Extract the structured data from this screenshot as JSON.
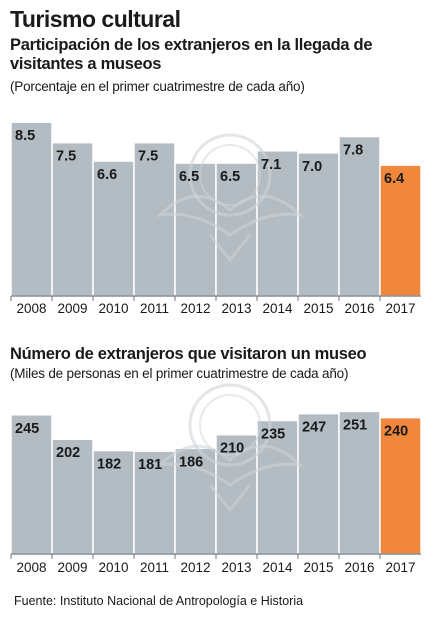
{
  "header": {
    "title": "Turismo cultural"
  },
  "footer": {
    "source": "Fuente: Instituto Nacional de Antropología e Historia"
  },
  "colors": {
    "bar": "#b3bcc3",
    "highlight": "#f0873d",
    "axis": "#6b7780",
    "divider": "#ffffff",
    "watermark": "#cfd5d9"
  },
  "chart_data": [
    {
      "type": "bar",
      "title": "Participación de los extranjeros en la llegada de visitantes a museos",
      "subtitle": "(Porcentaje en el primer cuatrimestre de cada año)",
      "categories": [
        "2008",
        "2009",
        "2010",
        "2011",
        "2012",
        "2013",
        "2014",
        "2015",
        "2016",
        "2017"
      ],
      "values": [
        8.5,
        7.5,
        6.6,
        7.5,
        6.5,
        6.5,
        7.1,
        7.0,
        7.8,
        6.4
      ],
      "value_labels": [
        "8.5",
        "7.5",
        "6.6",
        "7.5",
        "6.5",
        "6.5",
        "7.1",
        "7.0",
        "7.8",
        "6.4"
      ],
      "highlight_index": 9,
      "ylim": [
        0,
        8.9
      ],
      "grid": false,
      "xlabel": "",
      "ylabel": ""
    },
    {
      "type": "bar",
      "title": "Número de extranjeros que visitaron un museo",
      "subtitle": "(Miles de personas en el primer cuatrimestre de cada año)",
      "categories": [
        "2008",
        "2009",
        "2010",
        "2011",
        "2012",
        "2013",
        "2014",
        "2015",
        "2016",
        "2017"
      ],
      "values": [
        245,
        202,
        182,
        181,
        186,
        210,
        235,
        247,
        251,
        240
      ],
      "value_labels": [
        "245",
        "202",
        "182",
        "181",
        "186",
        "210",
        "235",
        "247",
        "251",
        "240"
      ],
      "highlight_index": 9,
      "ylim": [
        0,
        264
      ],
      "grid": false,
      "xlabel": "",
      "ylabel": ""
    }
  ]
}
